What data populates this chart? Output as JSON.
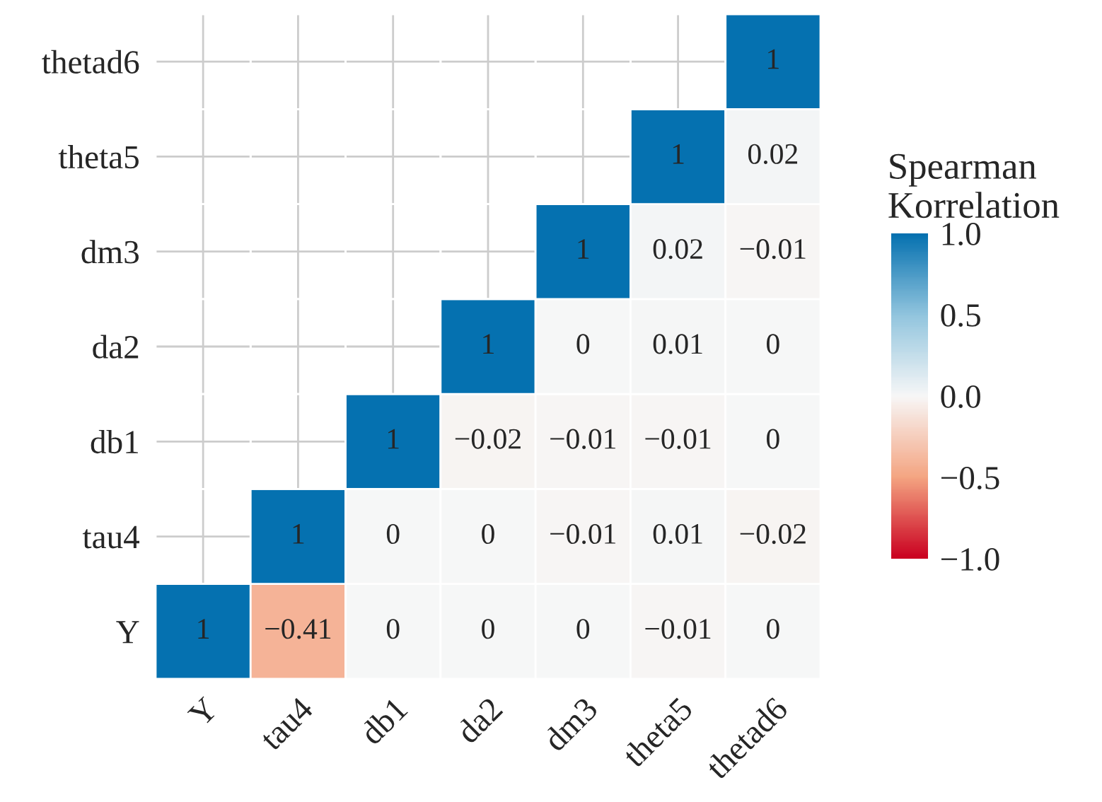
{
  "chart_data": {
    "type": "heatmap",
    "legend_title": "Spearman\nKorrelation",
    "categories": [
      "Y",
      "tau4",
      "db1",
      "da2",
      "dm3",
      "theta5",
      "thetad6"
    ],
    "y_categories": [
      "thetad6",
      "theta5",
      "dm3",
      "da2",
      "db1",
      "tau4",
      "Y"
    ],
    "cells": [
      [
        null,
        null,
        null,
        null,
        null,
        null,
        1
      ],
      [
        null,
        null,
        null,
        null,
        null,
        1,
        0.02
      ],
      [
        null,
        null,
        null,
        null,
        1,
        0.02,
        -0.01
      ],
      [
        null,
        null,
        null,
        1,
        0,
        0.01,
        0
      ],
      [
        null,
        null,
        1,
        -0.02,
        -0.01,
        -0.01,
        0
      ],
      [
        null,
        1,
        0,
        0,
        -0.01,
        0.01,
        -0.02
      ],
      [
        1,
        -0.41,
        0,
        0,
        0,
        -0.01,
        0
      ]
    ],
    "cell_labels": [
      [
        null,
        null,
        null,
        null,
        null,
        null,
        "1"
      ],
      [
        null,
        null,
        null,
        null,
        null,
        "1",
        "0.02"
      ],
      [
        null,
        null,
        null,
        null,
        "1",
        "0.02",
        "−0.01"
      ],
      [
        null,
        null,
        null,
        "1",
        "0",
        "0.01",
        "0"
      ],
      [
        null,
        null,
        "1",
        "−0.02",
        "−0.01",
        "−0.01",
        "0"
      ],
      [
        null,
        "1",
        "0",
        "0",
        "−0.01",
        "0.01",
        "−0.02"
      ],
      [
        "1",
        "−0.41",
        "0",
        "0",
        "0",
        "−0.01",
        "0"
      ]
    ],
    "clim": [
      -1,
      1
    ],
    "cticks": [
      {
        "value": 1,
        "label": "1.0"
      },
      {
        "value": 0.5,
        "label": "0.5"
      },
      {
        "value": 0,
        "label": "0.0"
      },
      {
        "value": -0.5,
        "label": "−0.5"
      },
      {
        "value": -1,
        "label": "−1.0"
      }
    ],
    "grid": true
  }
}
